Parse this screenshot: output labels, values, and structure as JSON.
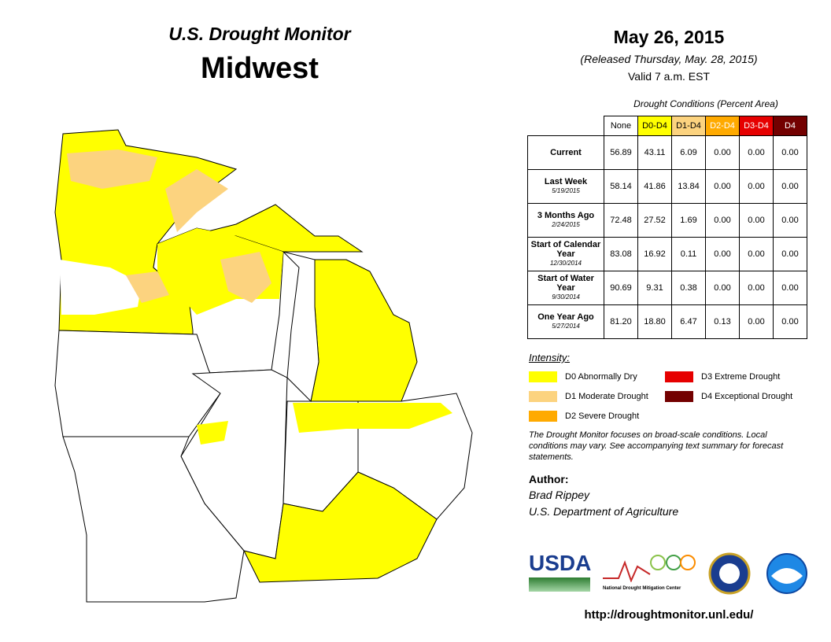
{
  "header": {
    "title": "U.S. Drought Monitor",
    "region": "Midwest"
  },
  "date": {
    "date": "May 26, 2015",
    "released": "(Released Thursday, May. 28, 2015)",
    "valid": "Valid  7 a.m. EST"
  },
  "table": {
    "caption": "Drought Conditions (Percent Area)",
    "columns": [
      {
        "label": "None",
        "color": "#ffffff",
        "text_color": "#000000"
      },
      {
        "label": "D0-D4",
        "color": "#ffff00",
        "text_color": "#000000"
      },
      {
        "label": "D1-D4",
        "color": "#fcd37f",
        "text_color": "#000000"
      },
      {
        "label": "D2-D4",
        "color": "#ffaa00",
        "text_color": "#ffffff"
      },
      {
        "label": "D3-D4",
        "color": "#e60000",
        "text_color": "#ffffff"
      },
      {
        "label": "D4",
        "color": "#730000",
        "text_color": "#ffffff"
      }
    ],
    "rows": [
      {
        "label": "Current",
        "values": [
          "56.89",
          "43.11",
          "6.09",
          "0.00",
          "0.00",
          "0.00"
        ]
      },
      {
        "label": "Last Week",
        "date": "5/19/2015",
        "values": [
          "58.14",
          "41.86",
          "13.84",
          "0.00",
          "0.00",
          "0.00"
        ]
      },
      {
        "label": "3 Months Ago",
        "date": "2/24/2015",
        "values": [
          "72.48",
          "27.52",
          "1.69",
          "0.00",
          "0.00",
          "0.00"
        ]
      },
      {
        "label": "Start of Calendar Year",
        "date": "12/30/2014",
        "values": [
          "83.08",
          "16.92",
          "0.11",
          "0.00",
          "0.00",
          "0.00"
        ]
      },
      {
        "label": "Start of Water Year",
        "date": "9/30/2014",
        "values": [
          "90.69",
          "9.31",
          "0.38",
          "0.00",
          "0.00",
          "0.00"
        ]
      },
      {
        "label": "One Year Ago",
        "date": "5/27/2014",
        "values": [
          "81.20",
          "18.80",
          "6.47",
          "0.13",
          "0.00",
          "0.00"
        ]
      }
    ]
  },
  "legend": {
    "title": "Intensity:",
    "items": [
      {
        "label": "D0 Abnormally Dry",
        "color": "#ffff00"
      },
      {
        "label": "D3 Extreme Drought",
        "color": "#e60000"
      },
      {
        "label": "D1 Moderate Drought",
        "color": "#fcd37f"
      },
      {
        "label": "D4 Exceptional Drought",
        "color": "#730000"
      },
      {
        "label": "D2 Severe Drought",
        "color": "#ffaa00"
      }
    ]
  },
  "note": "The Drought Monitor focuses on broad-scale conditions. Local conditions may vary. See accompanying text summary for forecast statements.",
  "author": {
    "heading": "Author:",
    "name": "Brad Rippey",
    "organization": "U.S. Department of Agriculture"
  },
  "logos": {
    "usda": "USDA",
    "ndmc": "National Drought Mitigation Center"
  },
  "url": "http://droughtmonitor.unl.edu/"
}
